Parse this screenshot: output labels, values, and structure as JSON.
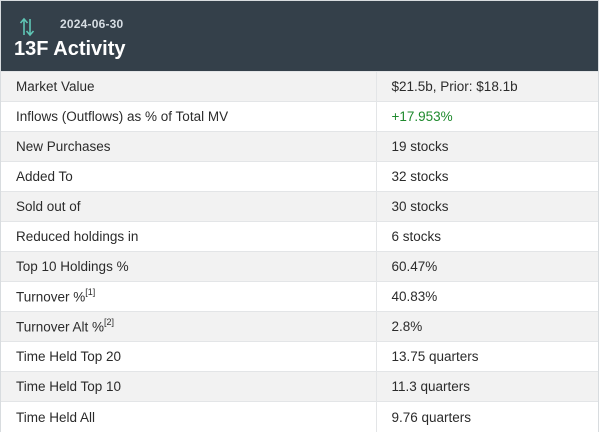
{
  "header": {
    "date": "2024-06-30",
    "title": "13F Activity",
    "icon": "up-down-arrows-icon",
    "background": "#34404a",
    "icon_color": "#5fc6b5"
  },
  "rows": [
    {
      "label": "Market Value",
      "value": "$21.5b, Prior: $18.1b"
    },
    {
      "label": "Inflows (Outflows) as % of Total MV",
      "value": "+17.953%",
      "value_color": "#1f8a2e"
    },
    {
      "label": "New Purchases",
      "value": "19 stocks"
    },
    {
      "label": "Added To",
      "value": "32 stocks"
    },
    {
      "label": "Sold out of",
      "value": "30 stocks"
    },
    {
      "label": "Reduced holdings in",
      "value": "6 stocks"
    },
    {
      "label": "Top 10 Holdings %",
      "value": "60.47%"
    },
    {
      "label": "Turnover %",
      "footnote": "[1]",
      "value": "40.83%"
    },
    {
      "label": "Turnover Alt %",
      "footnote": "[2]",
      "value": "2.8%"
    },
    {
      "label": "Time Held Top 20",
      "value": "13.75 quarters"
    },
    {
      "label": "Time Held Top 10",
      "value": "11.3 quarters"
    },
    {
      "label": "Time Held All",
      "value": "9.76 quarters"
    }
  ]
}
